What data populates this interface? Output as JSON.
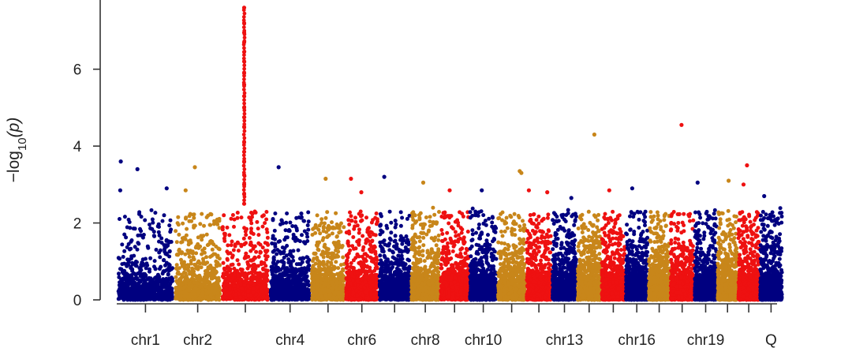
{
  "chart_data": {
    "type": "scatter",
    "subtype": "manhattan",
    "title": "",
    "xlabel": "",
    "ylabel": "−log10(p)",
    "ylabel_parts": {
      "prefix": "−log",
      "subscript": "10",
      "suffix": "(p)"
    },
    "ylim": [
      0,
      7.8
    ],
    "yticks": [
      0,
      2,
      4,
      6
    ],
    "grid": false,
    "legend": "none",
    "colors": [
      "#000080",
      "#C8861A",
      "#EE1111"
    ],
    "chromosomes": [
      {
        "name": "chr1",
        "label": "chr1",
        "start": 0,
        "end": 1,
        "color": "#000080",
        "density": 760
      },
      {
        "name": "chr2",
        "label": "chr2",
        "start": 1,
        "end": 1.82,
        "color": "#C8861A",
        "density": 760
      },
      {
        "name": "chr3",
        "label": "",
        "start": 1.82,
        "end": 2.66,
        "color": "#EE1111",
        "density": 760
      },
      {
        "name": "chr4",
        "label": "chr4",
        "start": 2.66,
        "end": 3.38,
        "color": "#000080",
        "density": 760
      },
      {
        "name": "chr5",
        "label": "",
        "start": 3.38,
        "end": 3.98,
        "color": "#C8861A",
        "density": 760
      },
      {
        "name": "chr6",
        "label": "chr6",
        "start": 3.98,
        "end": 4.56,
        "color": "#EE1111",
        "density": 760
      },
      {
        "name": "chr7",
        "label": "",
        "start": 4.56,
        "end": 5.12,
        "color": "#000080",
        "density": 760
      },
      {
        "name": "chr8",
        "label": "chr8",
        "start": 5.12,
        "end": 5.63,
        "color": "#C8861A",
        "density": 760
      },
      {
        "name": "chr9",
        "label": "",
        "start": 5.63,
        "end": 6.14,
        "color": "#EE1111",
        "density": 760
      },
      {
        "name": "chr10",
        "label": "chr10",
        "start": 6.14,
        "end": 6.63,
        "color": "#000080",
        "density": 760
      },
      {
        "name": "chr11",
        "label": "",
        "start": 6.63,
        "end": 7.13,
        "color": "#C8861A",
        "density": 760
      },
      {
        "name": "chr12",
        "label": "",
        "start": 7.13,
        "end": 7.58,
        "color": "#EE1111",
        "density": 760
      },
      {
        "name": "chr13",
        "label": "chr13",
        "start": 7.58,
        "end": 8.02,
        "color": "#000080",
        "density": 760
      },
      {
        "name": "chr14",
        "label": "",
        "start": 8.02,
        "end": 8.44,
        "color": "#C8861A",
        "density": 760
      },
      {
        "name": "chr15",
        "label": "",
        "start": 8.44,
        "end": 8.86,
        "color": "#EE1111",
        "density": 760
      },
      {
        "name": "chr16",
        "label": "chr16",
        "start": 8.86,
        "end": 9.26,
        "color": "#000080",
        "density": 760
      },
      {
        "name": "chr17",
        "label": "",
        "start": 9.26,
        "end": 9.64,
        "color": "#C8861A",
        "density": 760
      },
      {
        "name": "chr18",
        "label": "",
        "start": 9.64,
        "end": 10.06,
        "color": "#EE1111",
        "density": 760
      },
      {
        "name": "chr19",
        "label": "chr19",
        "start": 10.06,
        "end": 10.46,
        "color": "#000080",
        "density": 760
      },
      {
        "name": "chr20",
        "label": "",
        "start": 10.46,
        "end": 10.82,
        "color": "#C8861A",
        "density": 760
      },
      {
        "name": "chr21",
        "label": "",
        "start": 10.82,
        "end": 11.2,
        "color": "#EE1111",
        "density": 760
      },
      {
        "name": "Q",
        "label": "Q",
        "start": 11.2,
        "end": 11.6,
        "color": "#000080",
        "density": 760
      }
    ],
    "highlight_points": [
      {
        "chr": "chr1",
        "x": 0.07,
        "y": 3.6
      },
      {
        "chr": "chr1",
        "x": 0.36,
        "y": 3.4
      },
      {
        "chr": "chr1",
        "x": 0.87,
        "y": 2.9
      },
      {
        "chr": "chr1",
        "x": 0.06,
        "y": 2.85
      },
      {
        "chr": "chr2",
        "x": 1.36,
        "y": 3.45
      },
      {
        "chr": "chr2",
        "x": 1.2,
        "y": 2.85
      },
      {
        "chr": "chr3",
        "x": 2.22,
        "y": 7.6
      },
      {
        "chr": "chr3",
        "x": 2.22,
        "y": 7.2
      },
      {
        "chr": "chr3",
        "x": 2.22,
        "y": 6.95
      },
      {
        "chr": "chr3",
        "x": 2.22,
        "y": 6.7
      },
      {
        "chr": "chr3",
        "x": 2.22,
        "y": 6.45
      },
      {
        "chr": "chr3",
        "x": 2.22,
        "y": 6.2
      },
      {
        "chr": "chr3",
        "x": 2.22,
        "y": 5.9
      },
      {
        "chr": "chr3",
        "x": 2.22,
        "y": 5.6
      },
      {
        "chr": "chr3",
        "x": 2.22,
        "y": 5.3
      },
      {
        "chr": "chr3",
        "x": 2.22,
        "y": 5.0
      },
      {
        "chr": "chr3",
        "x": 2.22,
        "y": 4.75
      },
      {
        "chr": "chr3",
        "x": 2.22,
        "y": 4.5
      },
      {
        "chr": "chr3",
        "x": 2.22,
        "y": 4.1
      },
      {
        "chr": "chr3",
        "x": 2.22,
        "y": 3.85
      },
      {
        "chr": "chr3",
        "x": 2.22,
        "y": 3.6
      },
      {
        "chr": "chr3",
        "x": 2.22,
        "y": 3.25
      },
      {
        "chr": "chr3",
        "x": 2.22,
        "y": 3.0
      },
      {
        "chr": "chr3",
        "x": 2.22,
        "y": 2.75
      },
      {
        "chr": "chr3",
        "x": 2.22,
        "y": 2.5
      },
      {
        "chr": "chr4",
        "x": 2.82,
        "y": 3.45
      },
      {
        "chr": "chr5",
        "x": 3.64,
        "y": 3.15
      },
      {
        "chr": "chr6",
        "x": 4.08,
        "y": 3.15
      },
      {
        "chr": "chr6",
        "x": 4.26,
        "y": 2.8
      },
      {
        "chr": "chr7",
        "x": 4.66,
        "y": 3.2
      },
      {
        "chr": "chr8",
        "x": 5.34,
        "y": 3.05
      },
      {
        "chr": "chr9",
        "x": 5.8,
        "y": 2.85
      },
      {
        "chr": "chr10",
        "x": 6.36,
        "y": 2.85
      },
      {
        "chr": "chr11",
        "x": 7.02,
        "y": 3.35
      },
      {
        "chr": "chr11",
        "x": 7.05,
        "y": 3.3
      },
      {
        "chr": "chr12",
        "x": 7.18,
        "y": 2.85
      },
      {
        "chr": "chr12",
        "x": 7.5,
        "y": 2.8
      },
      {
        "chr": "chr13",
        "x": 7.92,
        "y": 2.65
      },
      {
        "chr": "chr14",
        "x": 8.32,
        "y": 4.3
      },
      {
        "chr": "chr15",
        "x": 8.58,
        "y": 2.85
      },
      {
        "chr": "chr16",
        "x": 8.98,
        "y": 2.9
      },
      {
        "chr": "chr18",
        "x": 9.84,
        "y": 4.55
      },
      {
        "chr": "chr19",
        "x": 10.12,
        "y": 3.05
      },
      {
        "chr": "chr20",
        "x": 10.66,
        "y": 3.1
      },
      {
        "chr": "chr21",
        "x": 10.98,
        "y": 3.5
      },
      {
        "chr": "chr21",
        "x": 10.92,
        "y": 3.0
      },
      {
        "chr": "Q",
        "x": 11.28,
        "y": 2.7
      }
    ]
  }
}
